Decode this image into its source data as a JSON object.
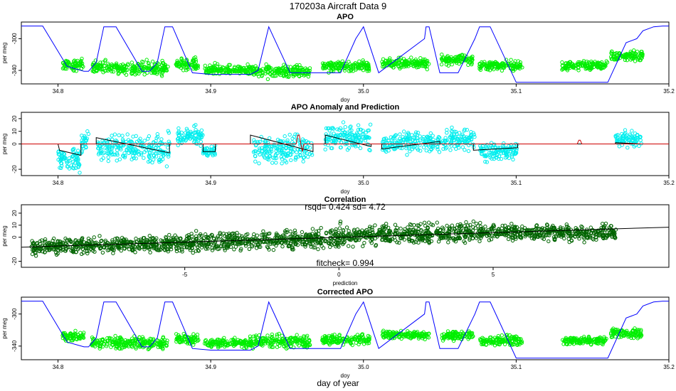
{
  "figure": {
    "title": "170203a   Aircraft Data 9",
    "xlabel": "day of year"
  },
  "chart_data": [
    {
      "type": "scatter",
      "title": "APO",
      "xlabel": "doy",
      "ylabel": "per meg",
      "xlim": [
        34.776,
        35.2
      ],
      "ylim": [
        -357,
        -279
      ],
      "xticks": [
        34.8,
        34.9,
        35.0,
        35.1,
        35.2
      ],
      "xtick_labels": [
        "34.8",
        "34.9",
        "35.0",
        "35.1",
        "35.2"
      ],
      "yticks": [
        -300,
        -340
      ],
      "ytick_labels": [
        "-300",
        "-340"
      ],
      "point_color": "#00ee00",
      "line_color": "#0000ff",
      "series": [
        {
          "kind": "points",
          "segments": [
            {
              "x0": 34.803,
              "x1": 34.817,
              "y": -333,
              "spread": 4
            },
            {
              "x0": 34.822,
              "x1": 34.872,
              "y": -337,
              "spread": 5
            },
            {
              "x0": 34.877,
              "x1": 34.892,
              "y": -333,
              "spread": 5
            },
            {
              "x0": 34.896,
              "x1": 34.928,
              "y": -339,
              "spread": 4
            },
            {
              "x0": 34.928,
              "x1": 34.965,
              "y": -341,
              "spread": 5
            },
            {
              "x0": 34.973,
              "x1": 35.004,
              "y": -335,
              "spread": 4
            },
            {
              "x0": 35.012,
              "x1": 35.043,
              "y": -331,
              "spread": 4
            },
            {
              "x0": 35.051,
              "x1": 35.072,
              "y": -327,
              "spread": 4
            },
            {
              "x0": 35.076,
              "x1": 35.104,
              "y": -334,
              "spread": 4
            },
            {
              "x0": 35.13,
              "x1": 35.16,
              "y": -334,
              "spread": 3
            },
            {
              "x0": 35.162,
              "x1": 35.183,
              "y": -322,
              "spread": 4
            }
          ]
        },
        {
          "kind": "line",
          "x": [
            34.776,
            34.79,
            34.795,
            34.806,
            34.817,
            34.82,
            34.825,
            34.83,
            34.838,
            34.855,
            34.86,
            34.865,
            34.87,
            34.875,
            34.888,
            34.9,
            34.926,
            34.931,
            34.938,
            34.952,
            34.965,
            34.985,
            34.995,
            35.0,
            35.01,
            35.04,
            35.041,
            35.043,
            35.05,
            35.062,
            35.073,
            35.076,
            35.083,
            35.1,
            35.16,
            35.172,
            35.179,
            35.183,
            35.19,
            35.196,
            35.2
          ],
          "y": [
            -284,
            -284,
            -300,
            -335,
            -341,
            -341,
            -330,
            -285,
            -285,
            -341,
            -341,
            -330,
            -285,
            -285,
            -343,
            -345,
            -345,
            -340,
            -285,
            -343,
            -343,
            -343,
            -300,
            -285,
            -343,
            -300,
            -285,
            -285,
            -343,
            -343,
            -300,
            -285,
            -285,
            -355,
            -355,
            -305,
            -300,
            -290,
            -285,
            -284,
            -284
          ]
        }
      ]
    },
    {
      "type": "scatter",
      "title": "APO Anomaly and Prediction",
      "xlabel": "doy",
      "ylabel": "per meg",
      "xlim": [
        34.776,
        35.2
      ],
      "ylim": [
        -25,
        25
      ],
      "xticks": [
        34.8,
        34.9,
        35.0,
        35.1,
        35.2
      ],
      "xtick_labels": [
        "34.8",
        "34.9",
        "35.0",
        "35.1",
        "35.2"
      ],
      "yticks": [
        20,
        10,
        0,
        -20
      ],
      "ytick_labels": [
        "20",
        "10",
        "0",
        "-20"
      ],
      "point_color": "#00eeee",
      "fit_color": "#000000",
      "zero_line_color": "#cc0000",
      "series": [
        {
          "kind": "points",
          "segments": [
            {
              "x0": 34.8,
              "x1": 34.815,
              "y": -12,
              "spread": 6
            },
            {
              "x0": 34.815,
              "x1": 34.82,
              "y": 2,
              "spread": 5
            },
            {
              "x0": 34.826,
              "x1": 34.873,
              "y": -3,
              "spread": 7
            },
            {
              "x0": 34.878,
              "x1": 34.895,
              "y": 6,
              "spread": 5
            },
            {
              "x0": 34.895,
              "x1": 34.903,
              "y": -6,
              "spread": 3
            },
            {
              "x0": 34.928,
              "x1": 34.967,
              "y": -4,
              "spread": 7
            },
            {
              "x0": 34.975,
              "x1": 35.005,
              "y": 6,
              "spread": 6
            },
            {
              "x0": 35.012,
              "x1": 35.05,
              "y": 1,
              "spread": 5
            },
            {
              "x0": 35.052,
              "x1": 35.073,
              "y": 3,
              "spread": 6
            },
            {
              "x0": 35.076,
              "x1": 35.101,
              "y": -6,
              "spread": 4
            },
            {
              "x0": 35.165,
              "x1": 35.182,
              "y": 4,
              "spread": 4
            }
          ]
        },
        {
          "kind": "line",
          "x": [
            34.8,
            34.801,
            34.815,
            34.815,
            34.825,
            34.825,
            34.873,
            34.873,
            34.895,
            34.895,
            34.903,
            34.903,
            34.926,
            34.926,
            34.967,
            34.967,
            34.975,
            34.975,
            35.005,
            35.005,
            35.012,
            35.012,
            35.05,
            35.05,
            35.072,
            35.072,
            35.101,
            35.101,
            35.165,
            35.165,
            35.182
          ],
          "y": [
            0,
            -5,
            -9,
            0,
            0,
            5,
            -7,
            0,
            0,
            -6,
            -6,
            0,
            0,
            7,
            -6,
            0,
            0,
            7,
            -2,
            0,
            0,
            -4,
            2,
            0,
            0,
            -5,
            -3,
            0,
            0,
            1,
            0
          ]
        },
        {
          "kind": "line",
          "name": "prediction",
          "x": [
            34.776,
            34.956,
            34.957,
            34.958,
            34.959,
            34.96,
            34.961,
            35.14,
            35.141,
            35.142,
            35.143,
            35.2
          ],
          "y": [
            0,
            0,
            7,
            7,
            0,
            -6,
            0,
            0,
            3,
            3,
            0,
            0
          ]
        }
      ]
    },
    {
      "type": "scatter",
      "title": "Correlation",
      "xlabel": "prediction",
      "ylabel": "per meg",
      "xlim": [
        -10.3,
        10.7
      ],
      "ylim": [
        -25,
        27
      ],
      "xticks": [
        -5,
        0,
        5
      ],
      "xtick_labels": [
        "-5",
        "0",
        "5"
      ],
      "yticks": [
        20,
        10,
        0,
        -20
      ],
      "ytick_labels": [
        "20",
        "10",
        "0",
        "-20"
      ],
      "point_color": "#006400",
      "annotations": [
        "rsqd= 0.424 sd= 4.72",
        "fitcheck= 0.994"
      ],
      "series": [
        {
          "kind": "points",
          "segments": [
            {
              "x0": -10,
              "x1": -5,
              "y0": -8,
              "y1": -5,
              "spread": 4
            },
            {
              "x0": -5,
              "x1": 0,
              "y0": -5,
              "y1": -1,
              "spread": 5
            },
            {
              "x0": 0,
              "x1": 5,
              "y0": 1,
              "y1": 4,
              "spread": 5
            },
            {
              "x0": 5,
              "x1": 9,
              "y0": 4,
              "y1": 3,
              "spread": 4
            },
            {
              "x0": -0.05,
              "x1": 0.05,
              "y0": -8,
              "y1": 14,
              "spread": 2
            }
          ]
        },
        {
          "kind": "line",
          "name": "fit",
          "x": [
            -10.3,
            10.7
          ],
          "y": [
            -8.3,
            8.3
          ]
        }
      ]
    },
    {
      "type": "scatter",
      "title": "Corrected APO",
      "xlabel": "doy",
      "ylabel": "per meg",
      "xlim": [
        34.776,
        35.2
      ],
      "ylim": [
        -357,
        -279
      ],
      "xticks": [
        34.8,
        34.9,
        35.0,
        35.1,
        35.2
      ],
      "xtick_labels": [
        "34.8",
        "34.9",
        "35.0",
        "35.1",
        "35.2"
      ],
      "yticks": [
        -300,
        -340
      ],
      "ytick_labels": [
        "-300",
        "-340"
      ],
      "point_color": "#00ee00",
      "line_color": "#0000ff",
      "series": [
        {
          "kind": "points",
          "segments": [
            {
              "x0": 34.803,
              "x1": 34.817,
              "y": -328,
              "spread": 4
            },
            {
              "x0": 34.822,
              "x1": 34.872,
              "y": -336,
              "spread": 5
            },
            {
              "x0": 34.877,
              "x1": 34.892,
              "y": -331,
              "spread": 4
            },
            {
              "x0": 34.896,
              "x1": 34.928,
              "y": -336,
              "spread": 4
            },
            {
              "x0": 34.928,
              "x1": 34.965,
              "y": -334,
              "spread": 5
            },
            {
              "x0": 34.973,
              "x1": 35.004,
              "y": -332,
              "spread": 4
            },
            {
              "x0": 35.012,
              "x1": 35.043,
              "y": -326,
              "spread": 3
            },
            {
              "x0": 35.051,
              "x1": 35.072,
              "y": -327,
              "spread": 4
            },
            {
              "x0": 35.076,
              "x1": 35.104,
              "y": -333,
              "spread": 4
            },
            {
              "x0": 35.13,
              "x1": 35.16,
              "y": -333,
              "spread": 3
            },
            {
              "x0": 35.162,
              "x1": 35.183,
              "y": -324,
              "spread": 4
            }
          ]
        },
        {
          "kind": "line",
          "x": [
            34.776,
            34.79,
            34.795,
            34.806,
            34.817,
            34.82,
            34.825,
            34.83,
            34.838,
            34.855,
            34.86,
            34.865,
            34.87,
            34.875,
            34.888,
            34.9,
            34.926,
            34.931,
            34.938,
            34.952,
            34.965,
            34.985,
            34.995,
            35.0,
            35.01,
            35.04,
            35.041,
            35.043,
            35.05,
            35.062,
            35.073,
            35.076,
            35.083,
            35.1,
            35.16,
            35.172,
            35.179,
            35.183,
            35.19,
            35.196,
            35.2
          ],
          "y": [
            -284,
            -284,
            -300,
            -335,
            -341,
            -341,
            -330,
            -285,
            -285,
            -341,
            -341,
            -330,
            -285,
            -285,
            -343,
            -345,
            -345,
            -340,
            -285,
            -343,
            -343,
            -343,
            -300,
            -285,
            -343,
            -300,
            -285,
            -285,
            -343,
            -343,
            -300,
            -285,
            -285,
            -355,
            -355,
            -305,
            -300,
            -290,
            -285,
            -284,
            -284
          ]
        }
      ]
    }
  ]
}
